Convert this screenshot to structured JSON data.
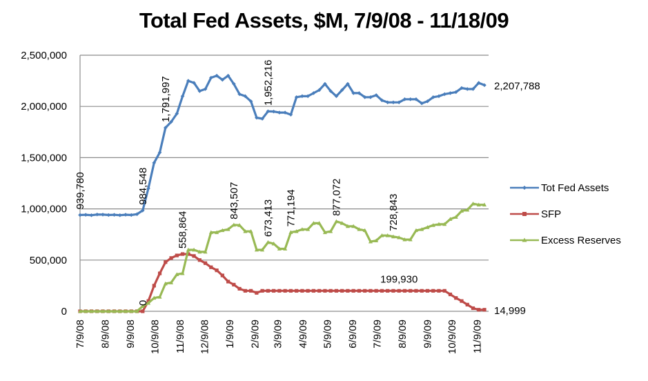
{
  "chart_data": {
    "type": "line",
    "title": "Total Fed Assets, $M, 7/9/08 - 11/18/09",
    "xlabel": "",
    "ylabel": "",
    "ylim": [
      0,
      2500000
    ],
    "yticks": [
      0,
      500000,
      1000000,
      1500000,
      2000000,
      2500000
    ],
    "ytick_labels": [
      "0",
      "500,000",
      "1,000,000",
      "1,500,000",
      "2,000,000",
      "2,500,000"
    ],
    "xtick_labels": [
      "7/9/08",
      "8/9/08",
      "9/9/08",
      "10/9/08",
      "11/9/08",
      "12/9/08",
      "1/9/09",
      "2/9/09",
      "3/9/09",
      "4/9/09",
      "5/9/09",
      "6/9/09",
      "7/9/09",
      "8/9/09",
      "9/9/09",
      "10/9/09",
      "11/9/09"
    ],
    "x_start": "7/9/08",
    "x_end": "11/18/09",
    "x_frequency": "weekly",
    "grid": "horizontal",
    "legend_position": "right",
    "series": [
      {
        "name": "Tot Fed Assets",
        "color": "#4a7ebb",
        "marker": "diamond",
        "values": [
          939780,
          942000,
          938000,
          945000,
          944000,
          940000,
          942000,
          938000,
          943000,
          940000,
          948000,
          984548,
          1200000,
          1450000,
          1550000,
          1791997,
          1850000,
          1930000,
          2100000,
          2250000,
          2230000,
          2150000,
          2170000,
          2280000,
          2300000,
          2260000,
          2300000,
          2220000,
          2120000,
          2100000,
          2050000,
          1890000,
          1880000,
          1952216,
          1950000,
          1940000,
          1940000,
          1920000,
          2090000,
          2100000,
          2100000,
          2130000,
          2160000,
          2220000,
          2150000,
          2100000,
          2160000,
          2220000,
          2130000,
          2130000,
          2090000,
          2090000,
          2110000,
          2060000,
          2040000,
          2040000,
          2040000,
          2070000,
          2070000,
          2070000,
          2030000,
          2050000,
          2090000,
          2100000,
          2120000,
          2130000,
          2140000,
          2180000,
          2170000,
          2170000,
          2230000,
          2207788
        ]
      },
      {
        "name": "SFP",
        "color": "#be4b48",
        "marker": "square",
        "values": [
          0,
          0,
          0,
          0,
          0,
          0,
          0,
          0,
          0,
          0,
          0,
          0,
          100000,
          250000,
          370000,
          480000,
          520000,
          545000,
          558864,
          558864,
          540000,
          500000,
          470000,
          430000,
          400000,
          350000,
          290000,
          260000,
          220000,
          200000,
          200000,
          180000,
          199930,
          199930,
          199930,
          199930,
          199930,
          199930,
          199930,
          199930,
          199930,
          199930,
          199930,
          199930,
          199930,
          199930,
          199930,
          199930,
          199930,
          199930,
          199930,
          199930,
          199930,
          199930,
          199930,
          199930,
          199930,
          199930,
          199930,
          199930,
          199930,
          199930,
          199930,
          199930,
          199930,
          165000,
          130000,
          100000,
          65000,
          30000,
          14999,
          14999
        ]
      },
      {
        "name": "Excess Reserves",
        "color": "#98b954",
        "marker": "triangle",
        "values": [
          0,
          0,
          0,
          0,
          0,
          0,
          0,
          0,
          0,
          0,
          0,
          50000,
          80000,
          130000,
          140000,
          270000,
          280000,
          360000,
          370000,
          600000,
          600000,
          580000,
          580000,
          770000,
          770000,
          790000,
          800000,
          843507,
          840000,
          780000,
          780000,
          600000,
          600000,
          673413,
          660000,
          610000,
          610000,
          771194,
          780000,
          800000,
          800000,
          860000,
          860000,
          770000,
          780000,
          877072,
          860000,
          830000,
          830000,
          800000,
          790000,
          680000,
          690000,
          740000,
          740000,
          728843,
          720000,
          700000,
          700000,
          790000,
          800000,
          820000,
          840000,
          850000,
          850000,
          900000,
          920000,
          980000,
          990000,
          1050000,
          1040000,
          1040000
        ]
      }
    ],
    "annotations": [
      {
        "series": "Tot Fed Assets",
        "index": 0,
        "text": "939,780",
        "orientation": "vertical"
      },
      {
        "series": "Tot Fed Assets",
        "index": 11,
        "text": "984,548",
        "orientation": "vertical"
      },
      {
        "series": "Tot Fed Assets",
        "index": 15,
        "text": "1,791,997",
        "orientation": "vertical"
      },
      {
        "series": "Tot Fed Assets",
        "index": 33,
        "text": "1,952,216",
        "orientation": "vertical"
      },
      {
        "series": "Tot Fed Assets",
        "index": 71,
        "text": "2,207,788",
        "orientation": "horizontal"
      },
      {
        "series": "SFP",
        "index": 11,
        "text": "0",
        "orientation": "vertical"
      },
      {
        "series": "SFP",
        "index": 18,
        "text": "558,864",
        "orientation": "vertical"
      },
      {
        "series": "SFP",
        "index": 56,
        "text": "199,930",
        "orientation": "horizontal"
      },
      {
        "series": "SFP",
        "index": 71,
        "text": "14,999",
        "orientation": "horizontal"
      },
      {
        "series": "Excess Reserves",
        "index": 27,
        "text": "843,507",
        "orientation": "vertical"
      },
      {
        "series": "Excess Reserves",
        "index": 33,
        "text": "673,413",
        "orientation": "vertical"
      },
      {
        "series": "Excess Reserves",
        "index": 37,
        "text": "771,194",
        "orientation": "vertical"
      },
      {
        "series": "Excess Reserves",
        "index": 45,
        "text": "877,072",
        "orientation": "vertical"
      },
      {
        "series": "Excess Reserves",
        "index": 55,
        "text": "728,843",
        "orientation": "vertical"
      }
    ]
  }
}
